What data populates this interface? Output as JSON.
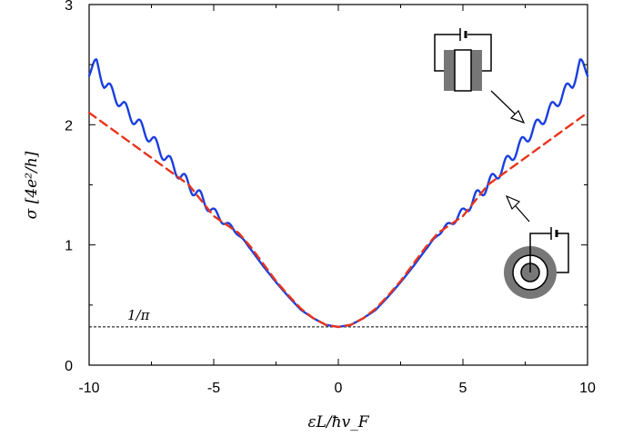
{
  "chart_data": {
    "type": "line",
    "title": "",
    "xlabel": "εL/ħv_F",
    "ylabel": "σ [4e²/h]",
    "xlim": [
      -10,
      10
    ],
    "ylim": [
      0,
      3
    ],
    "x_ticks": [
      -10,
      -5,
      0,
      5,
      10
    ],
    "y_ticks": [
      0,
      1,
      2,
      3
    ],
    "x_tick_labels": [
      "-10",
      "-5",
      "0",
      "5",
      "10"
    ],
    "y_tick_labels": [
      "0",
      "1",
      "2",
      "3"
    ],
    "grid": false,
    "reference_line": {
      "value": 0.318,
      "label": "1/π",
      "style": "dashed",
      "color": "#000000"
    },
    "series": [
      {
        "inset": "rectangular sample between two electrodes",
        "color": "#1a3fe0",
        "style": "solid",
        "x": [
          -10,
          -9.7,
          -9.4,
          -9.0,
          -8.5,
          -8.0,
          -7.5,
          -7.0,
          -6.5,
          -6.0,
          -5.5,
          -5.0,
          -4.5,
          -4.0,
          -3.5,
          -3.0,
          -2.5,
          -2.0,
          -1.5,
          -1.0,
          -0.5,
          0,
          0.5,
          1.0,
          1.5,
          2.0,
          2.5,
          3.0,
          3.5,
          4.0,
          4.5,
          5.0,
          5.5,
          6.0,
          6.5,
          7.0,
          7.5,
          8.0,
          8.5,
          9.0,
          9.4,
          9.7,
          10
        ],
        "y": [
          2.45,
          2.5,
          2.35,
          2.25,
          2.12,
          2.0,
          1.88,
          1.75,
          1.62,
          1.5,
          1.39,
          1.27,
          1.18,
          1.09,
          0.96,
          0.82,
          0.69,
          0.57,
          0.46,
          0.39,
          0.335,
          0.318,
          0.335,
          0.39,
          0.46,
          0.57,
          0.69,
          0.82,
          0.96,
          1.09,
          1.18,
          1.27,
          1.39,
          1.5,
          1.62,
          1.75,
          1.88,
          2.0,
          2.12,
          2.25,
          2.35,
          2.5,
          2.45
        ],
        "oscillation_amplitude": 0.05,
        "oscillation_period": 0.6
      },
      {
        "inset": "circular (Corbino) sample between two electrodes",
        "color": "#e8341c",
        "style": "dashed",
        "x": [
          -10,
          -9.0,
          -8.0,
          -7.0,
          -6.0,
          -5.0,
          -4.5,
          -4.0,
          -3.5,
          -3.0,
          -2.5,
          -2.0,
          -1.5,
          -1.0,
          -0.5,
          0,
          0.5,
          1.0,
          1.5,
          2.0,
          2.5,
          3.0,
          3.5,
          4.0,
          4.5,
          5.0,
          6.0,
          7.0,
          8.0,
          9.0,
          10
        ],
        "y": [
          2.1,
          1.95,
          1.8,
          1.65,
          1.5,
          1.24,
          1.17,
          1.1,
          0.98,
          0.84,
          0.7,
          0.58,
          0.47,
          0.39,
          0.335,
          0.318,
          0.335,
          0.39,
          0.47,
          0.58,
          0.7,
          0.84,
          0.98,
          1.1,
          1.17,
          1.24,
          1.5,
          1.65,
          1.8,
          1.95,
          2.1
        ]
      }
    ]
  }
}
